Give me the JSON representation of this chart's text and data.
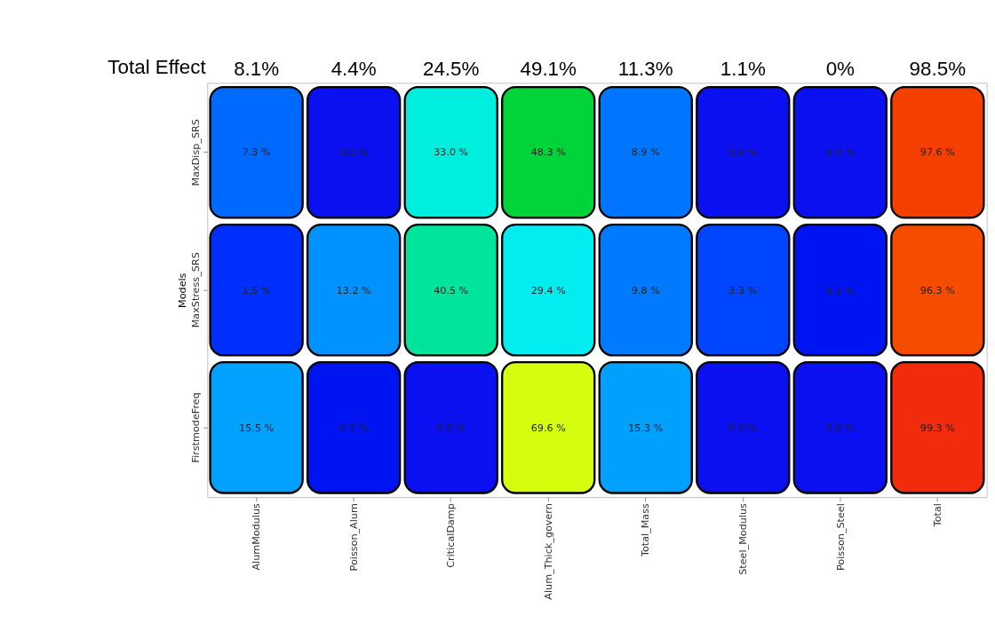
{
  "chart_data": {
    "type": "heatmap",
    "ylabel": "Models",
    "categories": [
      "AlumModulus",
      "Poisson_Alum",
      "CriticalDamp",
      "Alum_Thick_govern",
      "Total_Mass",
      "Steel_Modulus",
      "Poisson_Steel",
      "Total"
    ],
    "y_categories": [
      "MaxDisp_SRS",
      "MaxStress_SRS",
      "FirstmodeFreq"
    ],
    "cells": [
      [
        7.3,
        0.0,
        33.0,
        48.3,
        8.9,
        0.0,
        0.0,
        97.6
      ],
      [
        1.5,
        13.2,
        40.5,
        29.4,
        9.8,
        3.3,
        0.1,
        96.3
      ],
      [
        15.5,
        0.1,
        0.0,
        69.6,
        15.3,
        0.0,
        0.0,
        99.3
      ]
    ],
    "cell_labels": [
      [
        "7.3 %",
        "0.0 %",
        "33.0 %",
        "48.3 %",
        "8.9 %",
        "0.0 %",
        "0.0 %",
        "97.6 %"
      ],
      [
        "1.5 %",
        "13.2 %",
        "40.5 %",
        "29.4 %",
        "9.8 %",
        "3.3 %",
        "0.1 %",
        "96.3 %"
      ],
      [
        "15.5 %",
        "0.1 %",
        "0.0 %",
        "69.6 %",
        "15.3 %",
        "0.0 %",
        "0.0 %",
        "99.3 %"
      ]
    ],
    "annotations": [
      "Total Effect",
      "8.1%",
      "4.4%",
      "24.5%",
      "49.1%",
      "11.3%",
      "1.1%",
      "0%",
      "98.5%"
    ]
  }
}
